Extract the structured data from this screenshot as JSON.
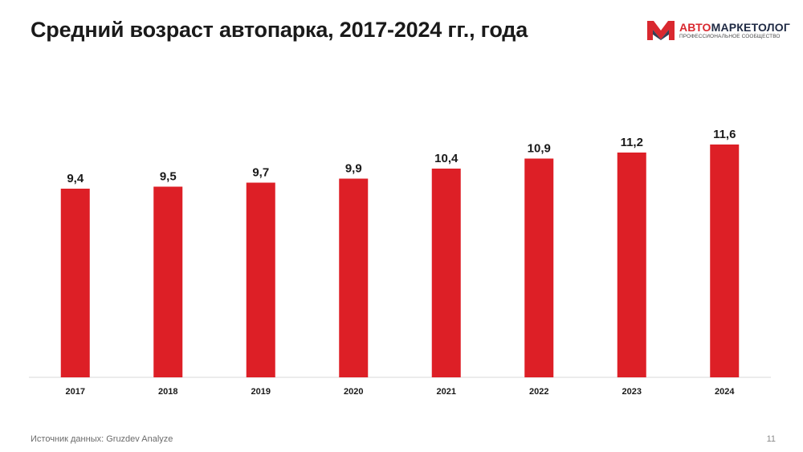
{
  "title": "Средний возраст автопарка, 2017-2024 гг., года",
  "logo": {
    "name_part1": "АВТО",
    "name_part2": "МАРКЕТОЛОГ",
    "subtitle": "ПРОФЕССИОНАЛЬНОЕ СООБЩЕСТВО",
    "icon": "am-monogram-icon"
  },
  "colors": {
    "bar": "#dd1f26",
    "axis": "#d9d9d9",
    "text": "#1a1a1a",
    "brand_red": "#d9282f",
    "brand_navy": "#1f2a44"
  },
  "chart_data": {
    "type": "bar",
    "categories": [
      "2017",
      "2018",
      "2019",
      "2020",
      "2021",
      "2022",
      "2023",
      "2024"
    ],
    "values": [
      9.4,
      9.5,
      9.7,
      9.9,
      10.4,
      10.9,
      11.2,
      11.6
    ],
    "value_labels": [
      "9,4",
      "9,5",
      "9,7",
      "9,9",
      "10,4",
      "10,9",
      "11,2",
      "11,6"
    ],
    "title": "Средний возраст автопарка, 2017-2024 гг., года",
    "xlabel": "",
    "ylabel": "",
    "ylim": [
      0,
      12.8
    ],
    "grid": false,
    "legend": "none"
  },
  "footer": {
    "source": "Источник данных: Gruzdev Analyze",
    "page_number": "11"
  }
}
